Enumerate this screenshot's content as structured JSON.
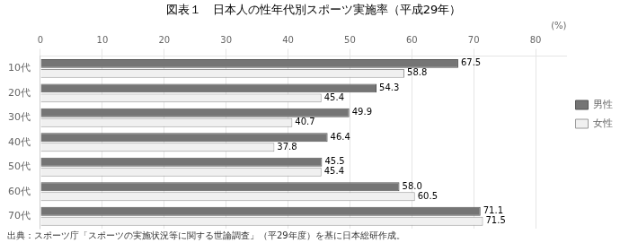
{
  "chart_data": {
    "type": "bar",
    "orientation": "horizontal",
    "title": "図表１　日本人の性年代別スポーツ実施率（平成29年）",
    "source": "出典：スポーツ庁「スポーツの実施状況等に関する世論調査」（平29年度）を基に日本総研作成。",
    "xlabel": "(%)",
    "categories": [
      "10代",
      "20代",
      "30代",
      "40代",
      "50代",
      "60代",
      "70代"
    ],
    "series": [
      {
        "name": "男性",
        "color": "#757575",
        "values": [
          67.5,
          54.3,
          49.9,
          46.4,
          45.5,
          58.0,
          71.1
        ],
        "value_labels": [
          "67.5",
          "54.3",
          "49.9",
          "46.4",
          "45.5",
          "58.0",
          "71.1"
        ]
      },
      {
        "name": "女性",
        "color": "#f0f0f0",
        "values": [
          58.8,
          45.4,
          40.7,
          37.8,
          45.4,
          60.5,
          71.5
        ],
        "value_labels": [
          "58.8",
          "45.4",
          "40.7",
          "37.8",
          "45.4",
          "60.5",
          "71.5"
        ]
      }
    ],
    "xlim": [
      0,
      85
    ],
    "xticks": [
      0,
      10,
      20,
      30,
      40,
      50,
      60,
      70,
      80
    ],
    "grid": true,
    "legend": "right",
    "data_labels": true
  }
}
